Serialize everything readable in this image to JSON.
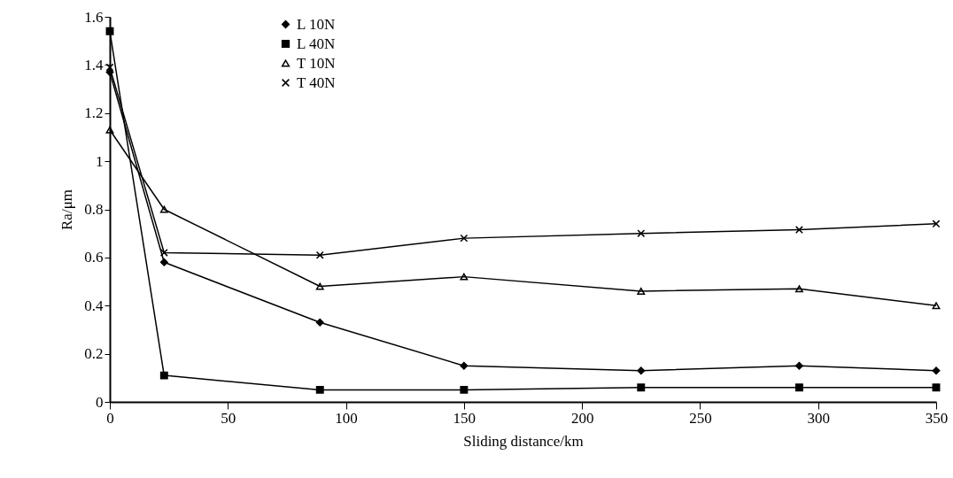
{
  "chart_data": {
    "type": "line",
    "xlabel": "Sliding distance/km",
    "ylabel": "Ra/μm",
    "x": [
      0,
      23,
      89,
      150,
      225,
      292,
      350
    ],
    "series": [
      {
        "name": "L 10N",
        "color": "#000000",
        "marker": "diamond",
        "values": [
          1.37,
          0.58,
          0.33,
          0.15,
          0.13,
          0.15,
          0.13
        ]
      },
      {
        "name": "L 40N",
        "color": "#000000",
        "marker": "square",
        "values": [
          1.54,
          0.11,
          0.05,
          0.05,
          0.06,
          0.06,
          0.06
        ]
      },
      {
        "name": "T 10N",
        "color": "#000000",
        "marker": "triangle",
        "values": [
          1.13,
          0.8,
          0.48,
          0.52,
          0.46,
          0.47,
          0.4
        ]
      },
      {
        "name": "T 40N",
        "color": "#000000",
        "marker": "cross",
        "values": [
          1.39,
          0.62,
          0.61,
          0.68,
          0.7,
          0.715,
          0.74
        ]
      }
    ],
    "xlim": [
      0,
      350
    ],
    "xticks": [
      0,
      50,
      100,
      150,
      200,
      250,
      300,
      350
    ],
    "ylim": [
      0,
      1.6
    ],
    "yticks": [
      0,
      0.2,
      0.4,
      0.6,
      0.8,
      1,
      1.2,
      1.4,
      1.6
    ],
    "grid": false,
    "legend": "top left",
    "line_style": "solid"
  }
}
